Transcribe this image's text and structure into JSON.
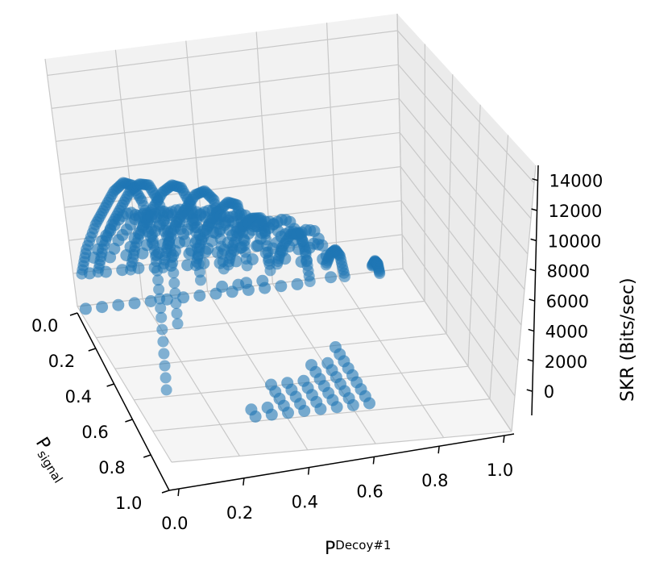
{
  "chart_data": {
    "type": "scatter",
    "projection": "3d",
    "title": "",
    "xlabel": {
      "main": "P",
      "subscript": "signal"
    },
    "ylabel": {
      "main": "P",
      "subscript": "Decoy#1"
    },
    "zlabel": "SKR (Bits/sec)",
    "x_ticks": [
      "0.0",
      "0.2",
      "0.4",
      "0.6",
      "0.8",
      "1.0"
    ],
    "y_ticks": [
      "0.0",
      "0.2",
      "0.4",
      "0.6",
      "0.8",
      "1.0"
    ],
    "z_ticks": [
      "0",
      "2000",
      "4000",
      "6000",
      "8000",
      "10000",
      "12000",
      "14000"
    ],
    "xlim": [
      0,
      1
    ],
    "ylim": [
      0,
      1
    ],
    "zlim": [
      0,
      15000
    ],
    "grid": true,
    "marker_color": "#1f77b4",
    "pane_color": "#f2f2f2",
    "grid_color": "#c8c8c8",
    "series": [
      {
        "p_decoy1": 0.0,
        "p_signal": [
          0.05,
          0.1,
          0.2,
          0.3,
          0.4,
          0.5,
          0.6,
          0.7,
          0.8,
          0.85,
          0.9,
          0.95
        ],
        "skr": [
          2500,
          4500,
          7000,
          9000,
          11000,
          12500,
          13300,
          13300,
          12500,
          11000,
          8000,
          4000
        ]
      },
      {
        "p_decoy1": 0.05,
        "p_signal": [
          0.05,
          0.1,
          0.2,
          0.3,
          0.4,
          0.5,
          0.6,
          0.7,
          0.8,
          0.85,
          0.9
        ],
        "skr": [
          2500,
          4400,
          6900,
          8900,
          10900,
          12300,
          13200,
          13200,
          12300,
          10800,
          7500
        ]
      },
      {
        "p_decoy1": 0.15,
        "p_signal": [
          0.05,
          0.1,
          0.2,
          0.3,
          0.4,
          0.5,
          0.6,
          0.7,
          0.75,
          0.8
        ],
        "skr": [
          2400,
          4300,
          6800,
          8700,
          10600,
          12000,
          12800,
          12700,
          11500,
          9000
        ]
      },
      {
        "p_decoy1": 0.25,
        "p_signal": [
          0.05,
          0.1,
          0.2,
          0.3,
          0.4,
          0.5,
          0.6,
          0.65,
          0.7
        ],
        "skr": [
          2300,
          4200,
          6600,
          8400,
          10200,
          11400,
          11800,
          10800,
          8500
        ]
      },
      {
        "p_decoy1": 0.35,
        "p_signal": [
          0.05,
          0.1,
          0.2,
          0.3,
          0.4,
          0.5,
          0.55,
          0.6
        ],
        "skr": [
          2200,
          4000,
          6300,
          8000,
          9500,
          10300,
          9500,
          7500
        ]
      },
      {
        "p_decoy1": 0.45,
        "p_signal": [
          0.05,
          0.1,
          0.2,
          0.3,
          0.4,
          0.45,
          0.5
        ],
        "skr": [
          2000,
          3700,
          5800,
          7300,
          8300,
          7800,
          6000
        ]
      },
      {
        "p_decoy1": 0.6,
        "p_signal": [
          0.05,
          0.1,
          0.2,
          0.3,
          0.35,
          0.4
        ],
        "skr": [
          1700,
          3200,
          5000,
          6000,
          5500,
          4000
        ]
      },
      {
        "p_decoy1": 0.75,
        "p_signal": [
          0.05,
          0.1,
          0.15,
          0.2,
          0.25
        ],
        "skr": [
          1300,
          2500,
          3200,
          3300,
          2500
        ]
      },
      {
        "p_decoy1": 0.9,
        "p_signal": [
          0.02,
          0.05,
          0.08,
          0.1
        ],
        "skr": [
          600,
          1200,
          1300,
          900
        ]
      }
    ]
  }
}
